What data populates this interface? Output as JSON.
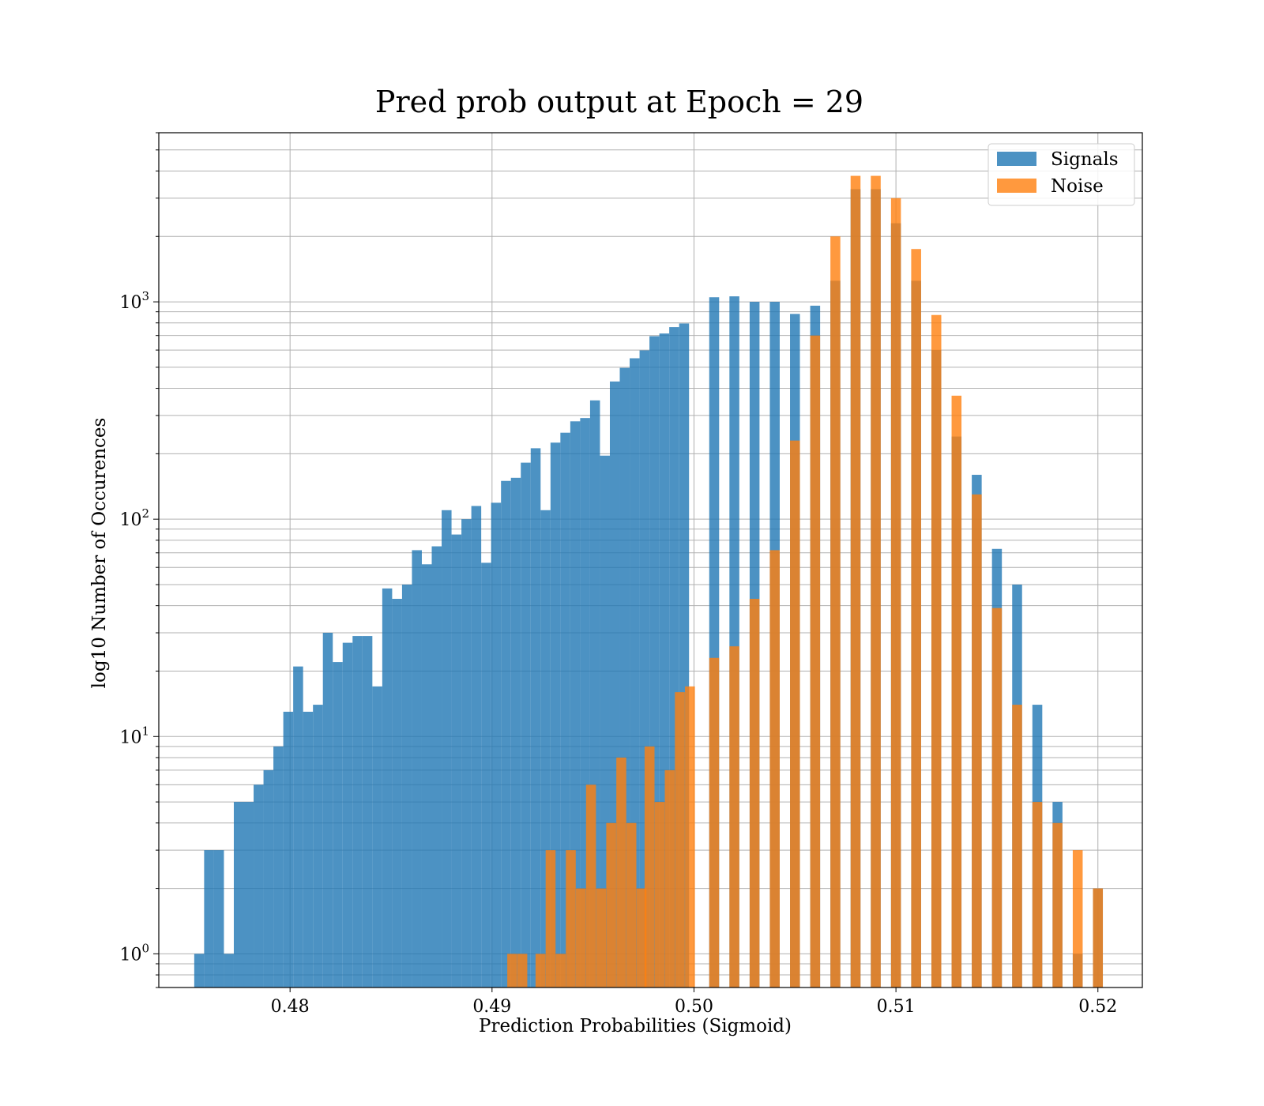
{
  "chart_data": {
    "type": "bar",
    "title": "Pred prob output at Epoch = 29",
    "xlabel": "Prediction Probabilities (Sigmoid)",
    "ylabel": "log10 Number of Occurences",
    "xlim": [
      0.4735,
      0.5222
    ],
    "ylim": [
      0.7,
      6000
    ],
    "y_scale": "log",
    "grid": true,
    "legend_position": "top-right",
    "x_ticks": [
      "0.48",
      "0.49",
      "0.50",
      "0.51",
      "0.52"
    ],
    "x_tick_values": [
      0.48,
      0.49,
      0.5,
      0.51,
      0.52
    ],
    "y_ticks": [
      {
        "base": "10",
        "exp": "0",
        "value": 1
      },
      {
        "base": "10",
        "exp": "1",
        "value": 10
      },
      {
        "base": "10",
        "exp": "2",
        "value": 100
      },
      {
        "base": "10",
        "exp": "3",
        "value": 1000
      }
    ],
    "bin_width": 0.00049,
    "series": [
      {
        "name": "Signals",
        "color": "#1f77b4",
        "x": [
          0.4755,
          0.47599,
          0.47648,
          0.47697,
          0.47746,
          0.47795,
          0.47844,
          0.47893,
          0.47942,
          0.47991,
          0.4804,
          0.48089,
          0.48138,
          0.48187,
          0.48236,
          0.48285,
          0.48334,
          0.48383,
          0.48432,
          0.48481,
          0.4853,
          0.48579,
          0.48628,
          0.48677,
          0.48726,
          0.48775,
          0.48824,
          0.48873,
          0.48922,
          0.48971,
          0.4902,
          0.49069,
          0.49118,
          0.49167,
          0.49216,
          0.49265,
          0.49314,
          0.49363,
          0.49412,
          0.49461,
          0.4951,
          0.49559,
          0.49608,
          0.49657,
          0.49706,
          0.49755,
          0.49804,
          0.49853,
          0.49902,
          0.49951,
          0.501,
          0.502,
          0.503,
          0.504,
          0.505,
          0.506,
          0.507,
          0.508,
          0.509,
          0.51,
          0.511,
          0.512,
          0.513,
          0.514,
          0.515,
          0.516,
          0.517,
          0.518,
          0.519,
          0.52
        ],
        "values": [
          1,
          3,
          3,
          1,
          5,
          5,
          6,
          7,
          9,
          13,
          21,
          13,
          14,
          30,
          22,
          27,
          29,
          29,
          17,
          48,
          43,
          50,
          72,
          62,
          75,
          110,
          85,
          100,
          115,
          63,
          119,
          150,
          155,
          182,
          212,
          110,
          225,
          250,
          282,
          292,
          352,
          196,
          430,
          497,
          550,
          598,
          695,
          715,
          765,
          795,
          1050,
          1060,
          1000,
          1000,
          880,
          960,
          1250,
          3300,
          3300,
          2300,
          1250,
          600,
          240,
          160,
          73,
          50,
          14,
          5,
          1,
          2
        ]
      },
      {
        "name": "Noise",
        "color": "#ff7f0e",
        "x": [
          0.491,
          0.4915,
          0.4924,
          0.4929,
          0.4934,
          0.4939,
          0.4944,
          0.4949,
          0.4954,
          0.4959,
          0.4964,
          0.4969,
          0.4974,
          0.4978,
          0.4983,
          0.4988,
          0.4993,
          0.4998,
          0.501,
          0.502,
          0.503,
          0.504,
          0.505,
          0.506,
          0.507,
          0.508,
          0.509,
          0.51,
          0.511,
          0.512,
          0.513,
          0.514,
          0.515,
          0.516,
          0.517,
          0.518,
          0.519,
          0.52
        ],
        "values": [
          1,
          1,
          1,
          3,
          1,
          3,
          2,
          6,
          2,
          4,
          8,
          4,
          2,
          9,
          5,
          7,
          16,
          17,
          23,
          26,
          43,
          72,
          230,
          700,
          2000,
          3800,
          3800,
          3000,
          1750,
          870,
          370,
          130,
          39,
          14,
          5,
          4,
          3,
          2
        ]
      }
    ]
  }
}
